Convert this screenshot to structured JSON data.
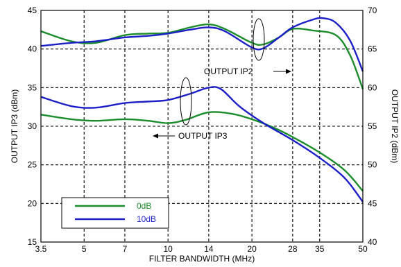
{
  "chart_data": {
    "type": "line",
    "x_ticks": [
      "3.5",
      "5",
      "7",
      "10",
      "14",
      "20",
      "28",
      "35",
      "50"
    ],
    "xlabel": "FILTER BANDWIDTH (MHz)",
    "ylabel": "OUTPUT IP3 (dBm)",
    "ylim": [
      15,
      45
    ],
    "y_ticks": [
      "15",
      "20",
      "25",
      "30",
      "35",
      "40",
      "45"
    ],
    "y2label": "OUTPUT IP2 (dBm)",
    "y2lim": [
      40,
      70
    ],
    "y2_ticks": [
      "40",
      "45",
      "50",
      "55",
      "60",
      "65",
      "70"
    ],
    "grid": true,
    "legend_position": "bottom-left",
    "annotations": {
      "ip2_label": "OUTPUT IP2",
      "ip3_label": "OUTPUT IP3"
    },
    "series": [
      {
        "name": "0dB",
        "color": "#1a8c2a",
        "ip3": [
          [
            3.5,
            31.5
          ],
          [
            4.5,
            30.9
          ],
          [
            5.5,
            30.7
          ],
          [
            7,
            30.9
          ],
          [
            8.5,
            30.7
          ],
          [
            10,
            30.4
          ],
          [
            11.5,
            30.8
          ],
          [
            14,
            31.8
          ],
          [
            17,
            31.6
          ],
          [
            20,
            30.9
          ],
          [
            24,
            29.8
          ],
          [
            28,
            28.6
          ],
          [
            35,
            26.6
          ],
          [
            43,
            24.3
          ],
          [
            50,
            21.6
          ]
        ],
        "ip2": [
          [
            3.5,
            67.3
          ],
          [
            4.5,
            66.0
          ],
          [
            5.5,
            65.8
          ],
          [
            7,
            66.8
          ],
          [
            8.5,
            67.0
          ],
          [
            10,
            67.1
          ],
          [
            12,
            67.8
          ],
          [
            14,
            68.2
          ],
          [
            16,
            67.6
          ],
          [
            20,
            65.8
          ],
          [
            22,
            65.6
          ],
          [
            25,
            66.5
          ],
          [
            28,
            67.6
          ],
          [
            33,
            67.4
          ],
          [
            40,
            66.8
          ],
          [
            45,
            64.2
          ],
          [
            50,
            59.8
          ]
        ]
      },
      {
        "name": "10dB",
        "color": "#1c1fc8",
        "ip3": [
          [
            3.5,
            33.8
          ],
          [
            4.5,
            32.6
          ],
          [
            5.5,
            32.4
          ],
          [
            7,
            33.0
          ],
          [
            8.5,
            33.2
          ],
          [
            10,
            33.4
          ],
          [
            12,
            34.2
          ],
          [
            14,
            35.0
          ],
          [
            15.5,
            34.8
          ],
          [
            18,
            32.6
          ],
          [
            22,
            30.4
          ],
          [
            28,
            28.2
          ],
          [
            35,
            25.9
          ],
          [
            43,
            23.3
          ],
          [
            50,
            20.2
          ]
        ],
        "ip2": [
          [
            3.5,
            65.4
          ],
          [
            4.5,
            65.8
          ],
          [
            5.5,
            66.0
          ],
          [
            7,
            66.5
          ],
          [
            8.5,
            66.7
          ],
          [
            10,
            67.0
          ],
          [
            12,
            67.5
          ],
          [
            14,
            67.8
          ],
          [
            16,
            67.3
          ],
          [
            20,
            65.2
          ],
          [
            22,
            65.1
          ],
          [
            25,
            66.5
          ],
          [
            28,
            67.8
          ],
          [
            33,
            68.8
          ],
          [
            36,
            69.0
          ],
          [
            40,
            68.4
          ],
          [
            45,
            66.1
          ],
          [
            50,
            62.1
          ]
        ]
      }
    ]
  }
}
